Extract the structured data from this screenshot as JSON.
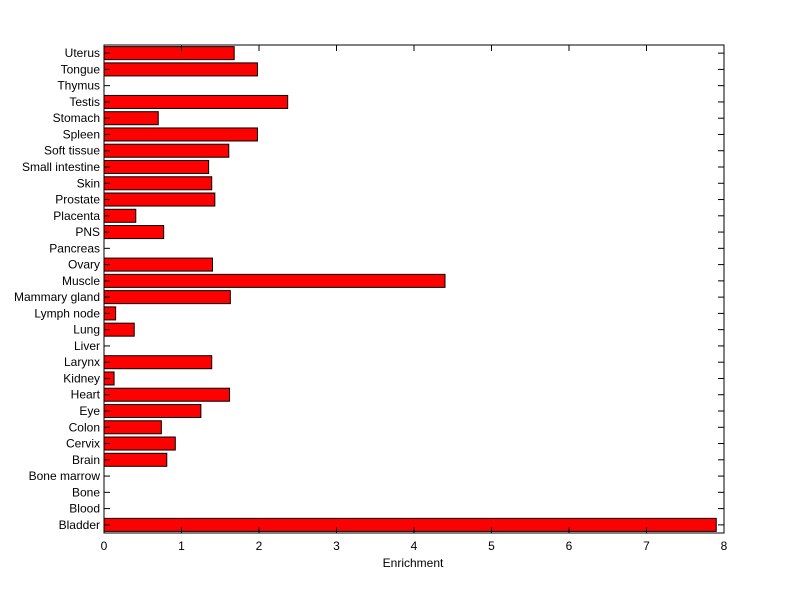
{
  "chart_data": {
    "type": "bar",
    "orientation": "horizontal",
    "categories": [
      "Bladder",
      "Blood",
      "Bone",
      "Bone marrow",
      "Brain",
      "Cervix",
      "Colon",
      "Eye",
      "Heart",
      "Kidney",
      "Larynx",
      "Liver",
      "Lung",
      "Lymph node",
      "Mammary gland",
      "Muscle",
      "Ovary",
      "Pancreas",
      "PNS",
      "Placenta",
      "Prostate",
      "Skin",
      "Small intestine",
      "Soft tissue",
      "Spleen",
      "Stomach",
      "Testis",
      "Thymus",
      "Tongue",
      "Uterus"
    ],
    "values": [
      7.9,
      0,
      0,
      0,
      0.81,
      0.92,
      0.74,
      1.25,
      1.62,
      0.13,
      1.39,
      0,
      0.39,
      0.15,
      1.63,
      4.4,
      1.4,
      0,
      0.77,
      0.41,
      1.43,
      1.39,
      1.35,
      1.61,
      1.98,
      0.7,
      2.37,
      0,
      1.98,
      1.68
    ],
    "title": "",
    "xlabel": "Enrichment",
    "ylabel": "",
    "xlim": [
      0,
      8
    ],
    "xticks": [
      "0",
      "1",
      "2",
      "3",
      "4",
      "5",
      "6",
      "7",
      "8"
    ],
    "bar_color": "#ff0000",
    "grid": false,
    "legend": "none"
  }
}
